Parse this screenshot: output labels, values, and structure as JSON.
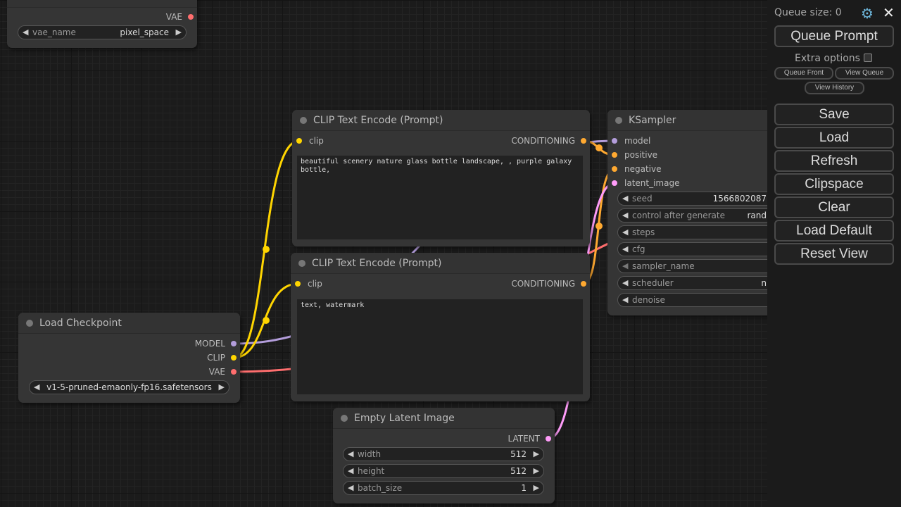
{
  "colors": {
    "clip": "#ffd500",
    "model": "#b39ddb",
    "vae": "#ff6e6e",
    "conditioning": "#ffa931",
    "latent": "#ff9cf9"
  },
  "vae_loader": {
    "output": "VAE",
    "widget": {
      "label": "vae_name",
      "value": "pixel_space"
    }
  },
  "clip_pos": {
    "title": "CLIP Text Encode (Prompt)",
    "input": "clip",
    "output": "CONDITIONING",
    "text": "beautiful scenery nature glass bottle landscape, , purple galaxy bottle,"
  },
  "clip_neg": {
    "title": "CLIP Text Encode (Prompt)",
    "input": "clip",
    "output": "CONDITIONING",
    "text": "text, watermark"
  },
  "checkpoint": {
    "title": "Load Checkpoint",
    "outputs": [
      "MODEL",
      "CLIP",
      "VAE"
    ],
    "widget": {
      "label": "",
      "value": "v1-5-pruned-emaonly-fp16.safetensors"
    }
  },
  "latent": {
    "title": "Empty Latent Image",
    "output": "LATENT",
    "widgets": [
      {
        "label": "width",
        "value": "512"
      },
      {
        "label": "height",
        "value": "512"
      },
      {
        "label": "batch_size",
        "value": "1"
      }
    ]
  },
  "ksampler": {
    "title": "KSampler",
    "inputs": [
      "model",
      "positive",
      "negative",
      "latent_image"
    ],
    "widgets": [
      {
        "label": "seed",
        "value": "1566802087"
      },
      {
        "label": "control after generate",
        "value": "rand"
      },
      {
        "label": "steps",
        "value": ""
      },
      {
        "label": "cfg",
        "value": ""
      },
      {
        "label": "sampler_name",
        "value": ""
      },
      {
        "label": "scheduler",
        "value": "n"
      },
      {
        "label": "denoise",
        "value": ""
      }
    ]
  },
  "menu": {
    "queue_size": "Queue size: 0",
    "queue_prompt": "Queue Prompt",
    "extra_options": "Extra options",
    "queue_front": "Queue Front",
    "view_queue": "View Queue",
    "view_history": "View History",
    "buttons": [
      "Save",
      "Load",
      "Refresh",
      "Clipspace",
      "Clear",
      "Load Default",
      "Reset View"
    ]
  }
}
